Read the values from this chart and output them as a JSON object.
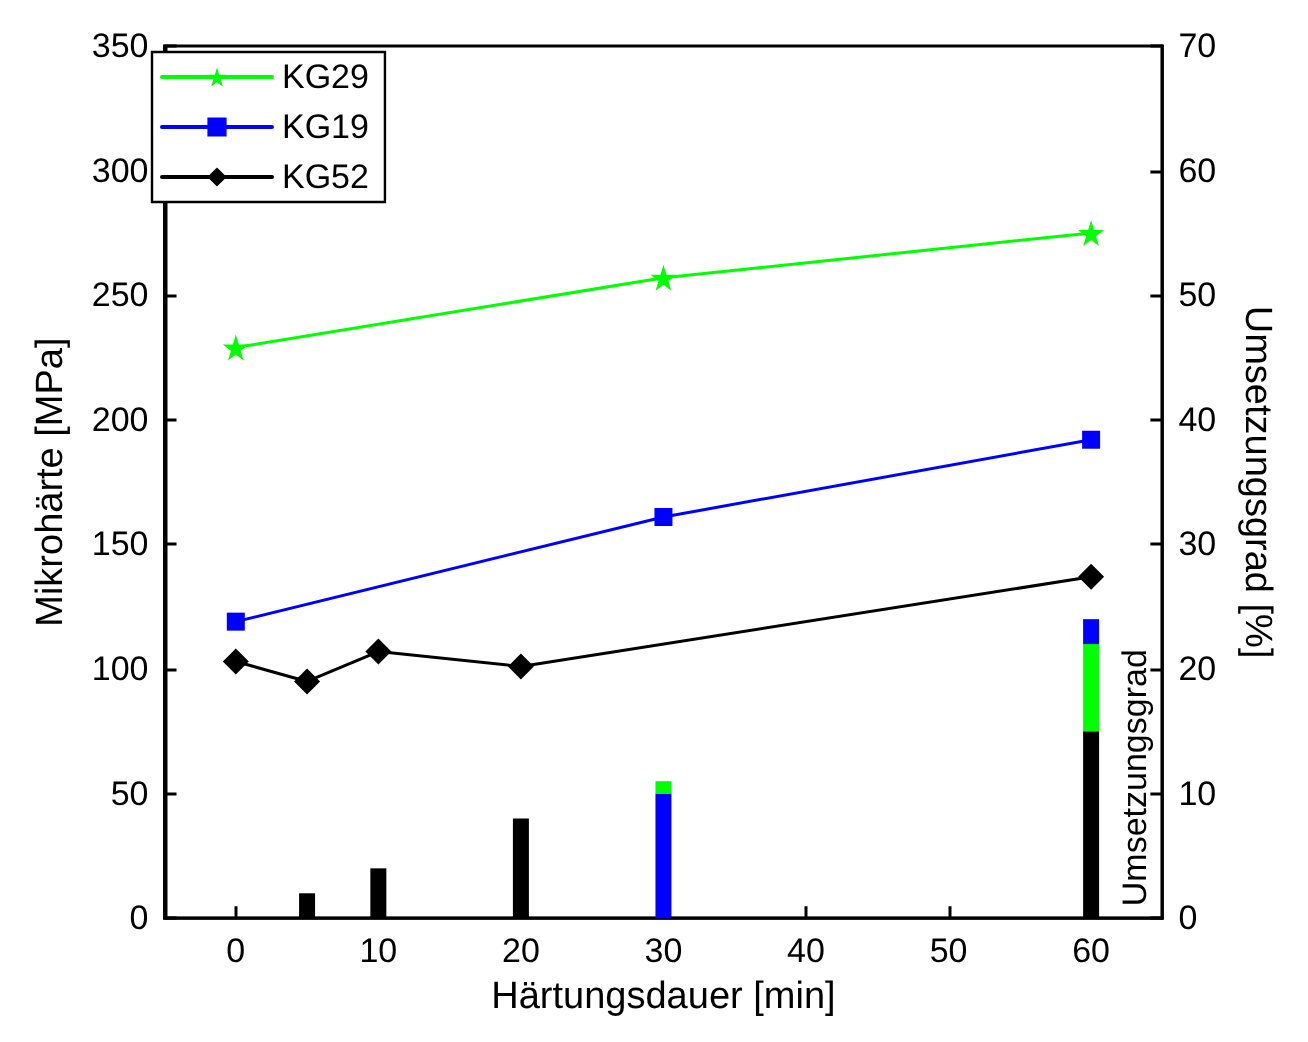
{
  "chart_data": {
    "type": "line",
    "xlabel": "Härtungsdauer [min]",
    "ylabel": "Mikrohärte [MPa]",
    "y2label": "Umsetzungsgrad [%]",
    "xlim": [
      -5,
      65
    ],
    "xticks": [
      0,
      10,
      20,
      30,
      40,
      50,
      60
    ],
    "ylim": [
      0,
      350
    ],
    "yticks": [
      0,
      50,
      100,
      150,
      200,
      250,
      300,
      350
    ],
    "y2lim": [
      0,
      70
    ],
    "y2ticks": [
      0,
      10,
      20,
      30,
      40,
      50,
      60,
      70
    ],
    "grid": false,
    "legend": "top left",
    "line_style": "solid",
    "stacked": true,
    "annotations": [
      "Umsetzungsgrad"
    ],
    "series": [
      {
        "name": "KG29",
        "marker": "star",
        "color": "#00ff00",
        "x": [
          0,
          30,
          60
        ],
        "values": [
          229,
          257,
          275
        ]
      },
      {
        "name": "KG19",
        "marker": "square",
        "color": "#0000ff",
        "x": [
          0,
          30,
          60
        ],
        "values": [
          119,
          161,
          192
        ]
      },
      {
        "name": "KG52",
        "marker": "diamond",
        "color": "#000000",
        "x": [
          0,
          5,
          10,
          20,
          60
        ],
        "values": [
          103,
          95,
          107,
          101,
          137
        ]
      },
      {
        "type": "bar",
        "axis": "y2",
        "colors": [
          "#000000",
          "#000000",
          "#000000",
          "#0000ff",
          "#000000"
        ],
        "x": [
          5,
          10,
          20,
          30,
          60
        ],
        "values": [
          2,
          4,
          8,
          10,
          15
        ]
      },
      {
        "type": "bar",
        "axis": "y2",
        "color": "#00ff00",
        "x": [
          5,
          10,
          20,
          30,
          60
        ],
        "values": [
          0,
          0,
          0,
          1,
          7
        ]
      },
      {
        "type": "bar",
        "axis": "y2",
        "color": "#0000ff",
        "x": [
          5,
          10,
          20,
          30,
          60
        ],
        "values": [
          0,
          0,
          0,
          0,
          2
        ]
      }
    ]
  }
}
